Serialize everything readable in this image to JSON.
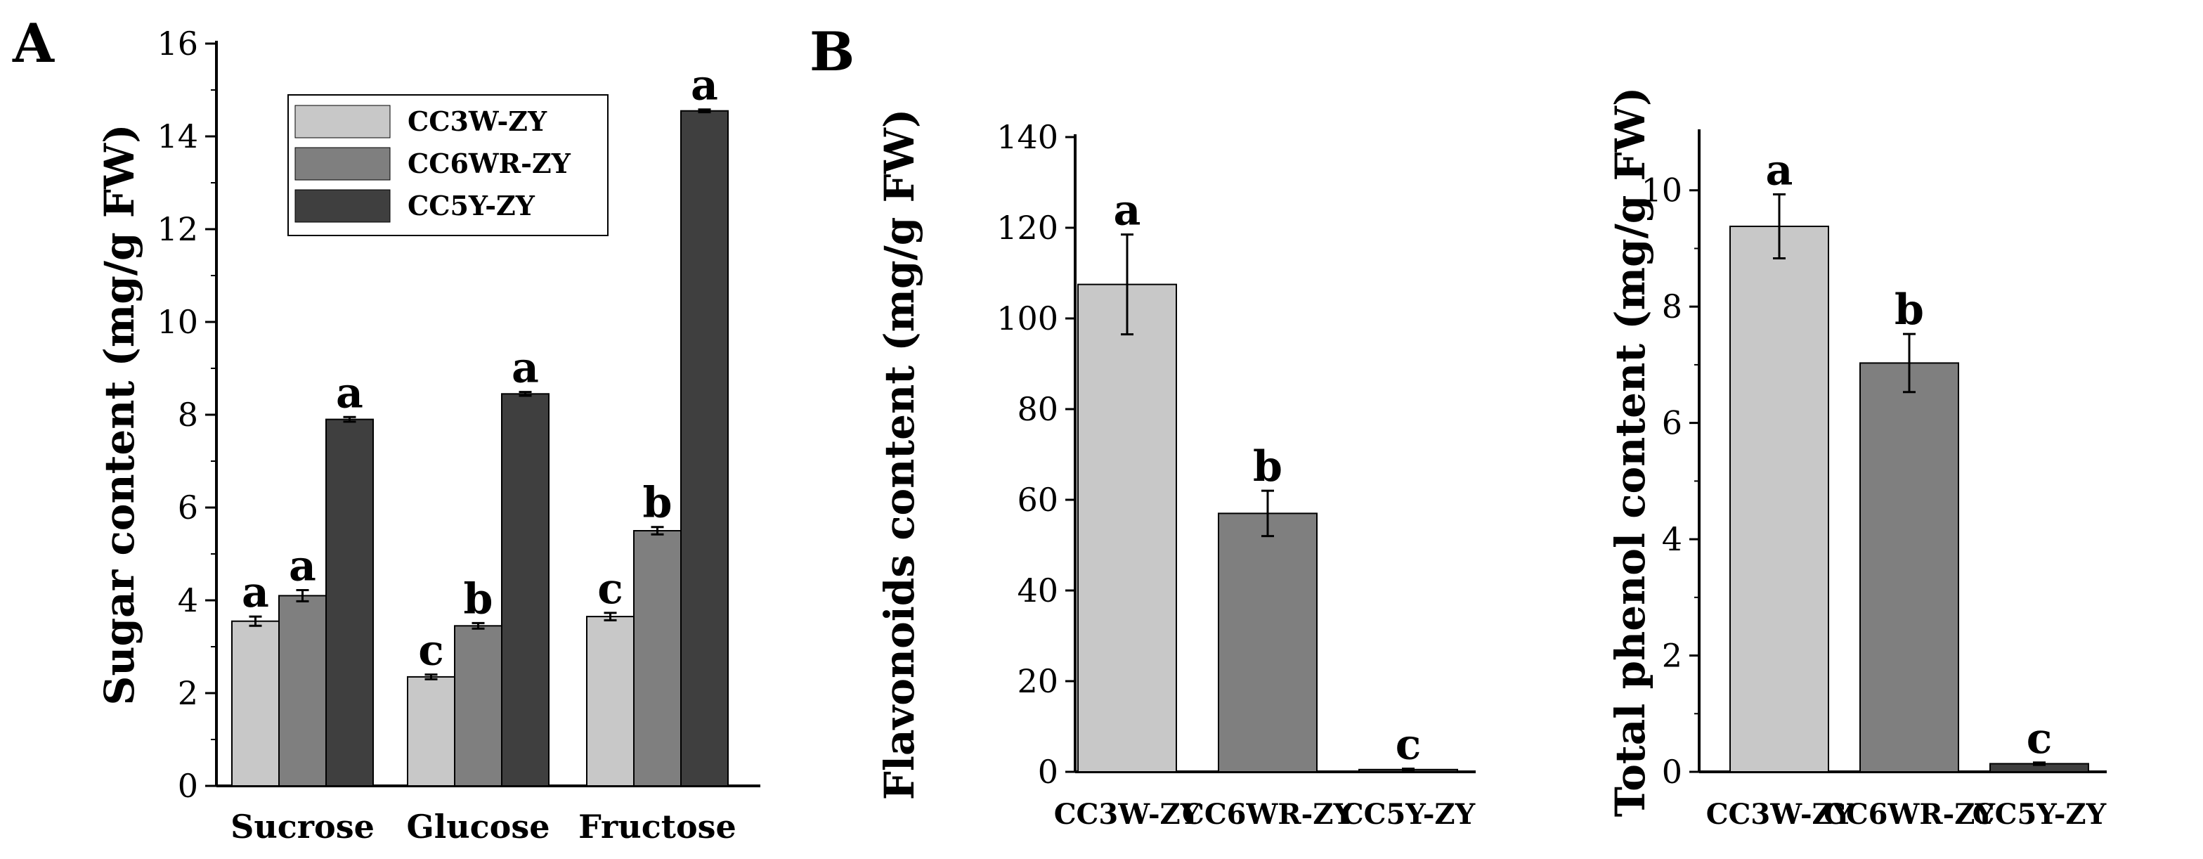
{
  "figure": {
    "panel_a_letter": "A",
    "panel_b_letter": "B"
  },
  "colors": {
    "CC3W-ZY": "#c8c8c8",
    "CC6WR-ZY": "#7f7f7f",
    "CC5Y-ZY": "#3f3f3f"
  },
  "chart_data": [
    {
      "panel": "A",
      "type": "bar",
      "title": "",
      "xlabel": "",
      "ylabel": "Sugar content (mg/g FW)",
      "ylim": [
        0,
        16
      ],
      "yticks": [
        "0",
        "2",
        "4",
        "6",
        "8",
        "10",
        "12",
        "14",
        "16"
      ],
      "categories": [
        "Sucrose",
        "Glucose",
        "Fructose"
      ],
      "legend": [
        "CC3W-ZY",
        "CC6WR-ZY",
        "CC5Y-ZY"
      ],
      "legend_position": "top-left",
      "series": [
        {
          "name": "CC3W-ZY",
          "values": [
            3.55,
            2.35,
            3.65
          ],
          "errors": [
            0.1,
            0.05,
            0.08
          ],
          "labels": [
            "a",
            "c",
            "c"
          ]
        },
        {
          "name": "CC6WR-ZY",
          "values": [
            4.1,
            3.45,
            5.5
          ],
          "errors": [
            0.12,
            0.06,
            0.08
          ],
          "labels": [
            "a",
            "b",
            "b"
          ]
        },
        {
          "name": "CC5Y-ZY",
          "values": [
            7.9,
            8.45,
            14.55
          ],
          "errors": [
            0.05,
            0.04,
            0.03
          ],
          "labels": [
            "a",
            "a",
            "a"
          ]
        }
      ]
    },
    {
      "panel": "B",
      "type": "bar",
      "title": "",
      "xlabel": "",
      "ylabel": "Flavonoids content (mg/g FW)",
      "ylim": [
        0,
        140
      ],
      "yticks": [
        "0",
        "20",
        "40",
        "60",
        "80",
        "100",
        "120",
        "140"
      ],
      "categories": [
        "CC3W-ZY",
        "CC6WR-ZY",
        "CC5Y-ZY"
      ],
      "values": [
        107.5,
        57,
        0.5
      ],
      "errors": [
        11,
        5,
        0.2
      ],
      "labels": [
        "a",
        "b",
        "c"
      ]
    },
    {
      "panel": "B",
      "type": "bar",
      "title": "",
      "xlabel": "",
      "ylabel": "Total phenol content (mg/g FW)",
      "ylim": [
        0,
        11
      ],
      "yticks": [
        "0",
        "2",
        "4",
        "6",
        "8",
        "10"
      ],
      "categories": [
        "CC3W-ZY",
        "CC6WR-ZY",
        "CC5Y-ZY"
      ],
      "values": [
        9.38,
        7.03,
        0.14
      ],
      "errors": [
        0.55,
        0.5,
        0.02
      ],
      "labels": [
        "a",
        "b",
        "c"
      ]
    }
  ]
}
